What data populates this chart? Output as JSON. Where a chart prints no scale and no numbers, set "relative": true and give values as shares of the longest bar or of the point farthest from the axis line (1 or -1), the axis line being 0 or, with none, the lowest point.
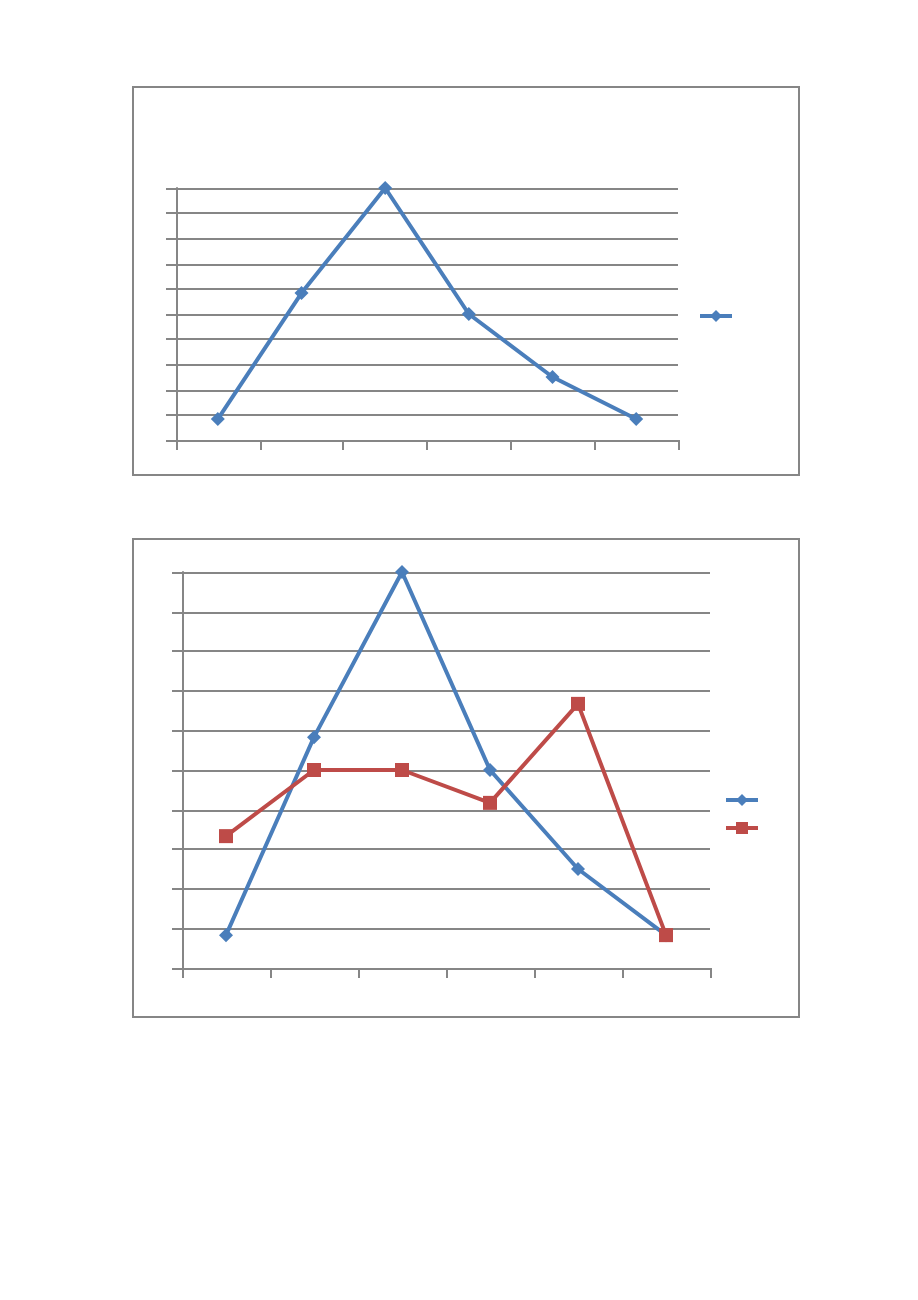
{
  "chart_data": [
    {
      "type": "line",
      "relative": true,
      "categories": [
        null,
        null,
        null,
        null,
        null,
        null
      ],
      "grid": "y",
      "series": [
        {
          "color": "#4a7ebb",
          "marker": "diamond",
          "values": [
            0.083,
            0.583,
            1,
            0.5,
            0.25,
            0.083
          ]
        }
      ]
    },
    {
      "type": "line",
      "relative": true,
      "categories": [
        null,
        null,
        null,
        null,
        null,
        null
      ],
      "grid": "y",
      "series": [
        {
          "color": "#4a7ebb",
          "marker": "diamond",
          "values": [
            0.083,
            0.583,
            1,
            0.5,
            0.25,
            0.083
          ]
        },
        {
          "color": "#be4b48",
          "marker": "square",
          "values": [
            0.333,
            0.5,
            0.5,
            0.417,
            0.667,
            0.083
          ]
        }
      ]
    }
  ]
}
